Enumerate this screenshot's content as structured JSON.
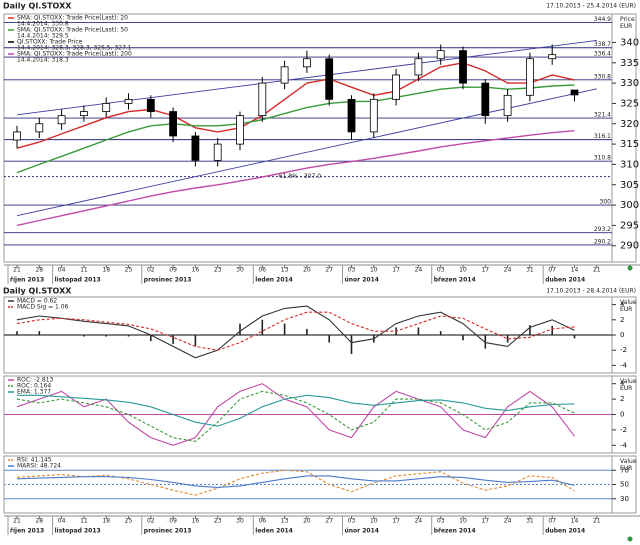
{
  "chart_data": [
    {
      "type": "candlestick",
      "title": "Daily QI.STOXX",
      "subtitle": "17.10.2013 - 25.4.2014 (EUR)",
      "y_label": "Price EUR",
      "categories": [
        "21",
        "28",
        "04",
        "11",
        "18",
        "25",
        "02",
        "09",
        "16",
        "23",
        "30",
        "06",
        "13",
        "20",
        "27",
        "03",
        "10",
        "17",
        "24",
        "03",
        "10",
        "17",
        "24",
        "31",
        "07",
        "14",
        "21"
      ],
      "months": [
        "říjen 2013",
        "listopad 2013",
        "prosinec 2013",
        "leden 2014",
        "únor 2014",
        "březen 2014",
        "duben 2014"
      ],
      "ylim": [
        286,
        347
      ],
      "yticks": [
        290,
        295,
        300,
        305,
        310,
        315,
        320,
        325,
        330,
        335,
        340
      ],
      "ohlc_name": "QI.STOXX: Trade Price",
      "ohlc_legend_value": "14.4.2014: 328.3, 328.3, 325.5, 327.1",
      "open": [
        316,
        318,
        320,
        322,
        323,
        325,
        326,
        323,
        317,
        311,
        315,
        322,
        330,
        334,
        336,
        326,
        318,
        326,
        332,
        336,
        338,
        330,
        322,
        327,
        336,
        328.3,
        null
      ],
      "high": [
        319.5,
        321.5,
        323.5,
        324.5,
        326.5,
        327.5,
        327,
        324,
        318,
        316.5,
        323,
        331.5,
        335.5,
        338,
        337,
        327,
        327.5,
        333.5,
        337.5,
        339.5,
        339,
        331,
        328.5,
        337.5,
        339.5,
        328.3,
        null
      ],
      "low": [
        314,
        316.5,
        318.5,
        320.5,
        321.5,
        323.5,
        321.5,
        315.5,
        309.5,
        309.5,
        313.5,
        320.5,
        328.5,
        332.5,
        324.5,
        316,
        316.5,
        324.5,
        330.5,
        334.5,
        328.5,
        320,
        320.5,
        325.5,
        334.5,
        325.5,
        null
      ],
      "close": [
        318,
        320,
        322,
        323,
        325,
        326,
        323,
        317,
        311,
        315,
        322,
        330,
        334,
        336,
        326,
        318,
        326,
        332,
        336,
        338,
        330,
        322,
        327,
        336,
        337,
        327.1,
        null
      ],
      "series": [
        {
          "name": "SMA: QI.STOXX: Trade Price(Last): 20",
          "legend_value": "14.4.2014: 330.8",
          "color": "#d42a2a",
          "values": [
            314,
            315.5,
            317.5,
            319.5,
            321.5,
            323,
            323.5,
            322,
            319,
            318,
            319,
            322,
            326,
            330,
            331,
            329,
            327,
            328,
            331,
            334,
            335,
            333,
            330,
            330,
            332,
            330.8,
            null
          ]
        },
        {
          "name": "SMA: QI.STOXX: Trade Price(Last): 50",
          "legend_value": "14.4.2014: 329.5",
          "color": "#3a9a3a",
          "values": [
            308,
            310,
            312,
            314,
            316,
            318,
            319.5,
            320,
            319.5,
            319.5,
            320,
            321,
            322.5,
            324,
            325,
            325.5,
            325.5,
            326.5,
            327.5,
            328.5,
            329,
            329,
            328.5,
            328.8,
            329.3,
            329.5,
            null
          ]
        },
        {
          "name": "SMA: QI.STOXX: Trade Price(Last): 200",
          "legend_value": "14.4.2014: 318.3",
          "color": "#c04aa8",
          "values": [
            295,
            296.2,
            297.4,
            298.6,
            299.8,
            301,
            302.2,
            303.3,
            304.2,
            305,
            305.9,
            306.9,
            308,
            309.1,
            310,
            310.7,
            311.5,
            312.4,
            313.3,
            314.3,
            315.1,
            315.8,
            316.5,
            317.2,
            317.8,
            318.3,
            null
          ]
        }
      ],
      "trendlines": [
        {
          "values": [
            322.2,
            340.5
          ],
          "color": "#3c3ca0"
        },
        {
          "values": [
            297.4,
            328.6
          ],
          "color": "#3c3ca0"
        }
      ],
      "level_color": "#2b2b7a",
      "levels": [
        {
          "value": 344.9,
          "label": "344.9"
        },
        {
          "value": 338.7,
          "label": "338.7"
        },
        {
          "value": 336.4,
          "label": "336.4"
        },
        {
          "value": 330.8,
          "label": "330.8"
        },
        {
          "value": 321.4,
          "label": "321.4"
        },
        {
          "value": 316.1,
          "label": "316.1"
        },
        {
          "value": 310.8,
          "label": "310.8"
        },
        {
          "value": 307,
          "label": "61.8% - 307.0",
          "dash": true
        },
        {
          "value": 300,
          "label": "300"
        },
        {
          "value": 293.2,
          "label": "293.2"
        },
        {
          "value": 290.2,
          "label": "290.2"
        }
      ]
    },
    {
      "type": "line",
      "title": "Daily QI.STOXX",
      "subtitle": "17.10.2013 - 28.4.2014 (EUR)",
      "y_label": "Value EUR",
      "ylim": [
        -5,
        5
      ],
      "yticks": [
        -4,
        -2,
        0,
        2,
        4
      ],
      "level_color": "#000000",
      "levels": [
        {
          "value": 0
        }
      ],
      "histogram": {
        "color": "#222222",
        "values": [
          0.5,
          0.5,
          0,
          -0.2,
          -0.2,
          -0.2,
          -0.8,
          -1.2,
          -1.5,
          0,
          1.5,
          2,
          1.5,
          0.8,
          -1,
          -2.5,
          -1,
          1,
          1,
          0.5,
          -0.7,
          -1.8,
          -1,
          1.3,
          1.2,
          -0.44,
          null
        ]
      },
      "series": [
        {
          "name": "MACD = 0.62",
          "color": "#333333",
          "values": [
            2,
            2.5,
            2.2,
            1.8,
            1.5,
            1.2,
            0,
            -1.5,
            -3,
            -2,
            0.5,
            2.5,
            3.5,
            3.8,
            2,
            -1,
            -0.5,
            1.5,
            2.5,
            3,
            1.5,
            -1,
            -1.5,
            1,
            2,
            0.62,
            null
          ]
        },
        {
          "name": "MACD Sig = 1.06",
          "color": "#d42a2a",
          "dash": true,
          "values": [
            1.5,
            2,
            2.2,
            2,
            1.7,
            1.4,
            0.8,
            -0.3,
            -1.5,
            -2,
            -1,
            0.5,
            2,
            3,
            3,
            1.5,
            0.5,
            0.5,
            1.5,
            2.5,
            2.2,
            0.8,
            -0.5,
            -0.3,
            0.8,
            1.06,
            null
          ]
        }
      ]
    },
    {
      "type": "line",
      "y_label": "Value EUR",
      "ylim": [
        -5,
        5
      ],
      "yticks": [
        -4,
        -2,
        0,
        2,
        4
      ],
      "level_color": "#c04aa8",
      "levels": [
        {
          "value": 0
        }
      ],
      "series": [
        {
          "name": "ROC: -2.813",
          "color": "#c04aa8",
          "values": [
            1,
            2,
            3,
            1,
            2,
            -1,
            -3,
            -4,
            -3,
            1,
            3,
            4,
            2,
            1,
            -2,
            -3,
            1,
            3,
            2,
            1,
            -2,
            -3,
            1,
            3,
            1,
            -2.813,
            null
          ]
        },
        {
          "name": "ROC: 0.164",
          "color": "#3a9a3a",
          "dash": true,
          "values": [
            2,
            1.5,
            2,
            1.5,
            1,
            0,
            -1.5,
            -3,
            -3.5,
            -1,
            2,
            3,
            2.5,
            1.5,
            0,
            -2,
            -1,
            2,
            2,
            1.5,
            0,
            -2,
            -1,
            1.5,
            1.5,
            0.164,
            null
          ]
        },
        {
          "name": "EMA: 1.377",
          "color": "#2a9a9a",
          "values": [
            2.5,
            2.5,
            2.3,
            2.1,
            1.9,
            1.6,
            1,
            0,
            -1,
            -1.5,
            -0.5,
            1,
            2,
            2.5,
            2.2,
            1.5,
            1.2,
            1.5,
            1.8,
            1.9,
            1.5,
            0.8,
            0.5,
            1,
            1.3,
            1.377,
            null
          ]
        }
      ]
    },
    {
      "type": "line",
      "y_label": "Value EUR",
      "ylim": [
        10,
        90
      ],
      "yticks": [
        30,
        50,
        70
      ],
      "level_color": "#5a8ad0",
      "levels": [
        {
          "value": 30
        },
        {
          "value": 50,
          "dash": true
        },
        {
          "value": 70
        }
      ],
      "series": [
        {
          "name": "RSI: 41.145",
          "color": "#e08a30",
          "dash": true,
          "values": [
            60,
            62,
            64,
            61,
            63,
            58,
            50,
            42,
            35,
            45,
            58,
            66,
            70,
            68,
            50,
            40,
            52,
            62,
            65,
            68,
            52,
            42,
            48,
            62,
            60,
            41.145,
            null
          ]
        },
        {
          "name": "MARSI: 48.724",
          "color": "#4a7ac8",
          "values": [
            58,
            59,
            60,
            61,
            61,
            60,
            57,
            53,
            48,
            46,
            48,
            53,
            58,
            62,
            62,
            58,
            55,
            55,
            58,
            61,
            60,
            56,
            53,
            54,
            56,
            48.724,
            null
          ]
        }
      ]
    }
  ]
}
